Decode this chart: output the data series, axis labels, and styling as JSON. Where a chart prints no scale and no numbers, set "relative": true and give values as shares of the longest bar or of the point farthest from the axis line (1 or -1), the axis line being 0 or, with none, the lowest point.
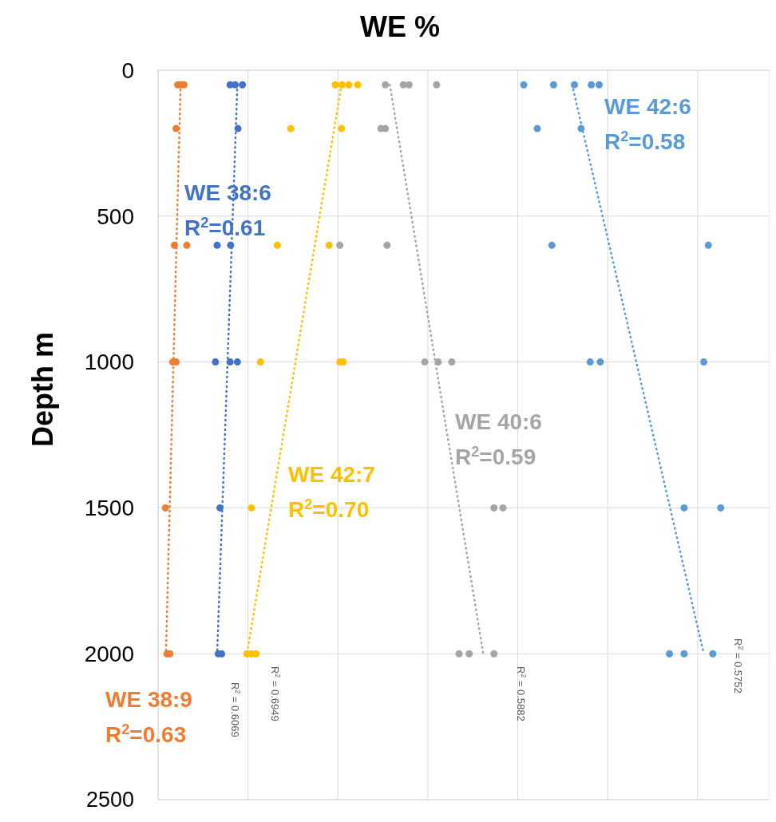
{
  "chart_data": {
    "type": "scatter",
    "title": "WE %",
    "ylabel": "Depth m",
    "orientation": "horizontal",
    "relative": true,
    "ylim": [
      2500,
      0
    ],
    "yticks": [
      0,
      500,
      1000,
      1500,
      2000,
      2500
    ],
    "tick_labels": "y",
    "grid": true,
    "marker": "circle",
    "series": [
      {
        "name": "WE 38:9",
        "color": "#ed7d31",
        "x": [
          50,
          50,
          50,
          200,
          600,
          600,
          1000,
          1000,
          1500,
          2000,
          2000
        ],
        "values": [
          0.035,
          0.04,
          0.046,
          0.032,
          0.029,
          0.051,
          0.026,
          0.032,
          0.013,
          0.016,
          0.021
        ]
      },
      {
        "name": "WE 38:6",
        "color": "#4472c4",
        "x": [
          50,
          50,
          50,
          200,
          600,
          600,
          1000,
          1000,
          1000,
          1500,
          2000,
          2000
        ],
        "values": [
          0.128,
          0.137,
          0.15,
          0.142,
          0.105,
          0.129,
          0.102,
          0.128,
          0.141,
          0.11,
          0.107,
          0.113
        ]
      },
      {
        "name": "WE 42:7",
        "color": "#ffc000",
        "x": [
          50,
          50,
          50,
          50,
          200,
          200,
          600,
          600,
          1000,
          1000,
          1000,
          1500,
          2000,
          2000,
          2000
        ],
        "values": [
          0.315,
          0.327,
          0.339,
          0.355,
          0.236,
          0.326,
          0.212,
          0.304,
          0.182,
          0.323,
          0.329,
          0.166,
          0.158,
          0.166,
          0.174
        ]
      },
      {
        "name": "WE 40:6",
        "color": "#a5a5a5",
        "x": [
          50,
          50,
          50,
          50,
          200,
          200,
          600,
          600,
          1000,
          1000,
          1000,
          1500,
          1500,
          2000,
          2000,
          2000
        ],
        "values": [
          0.404,
          0.436,
          0.446,
          0.495,
          0.396,
          0.404,
          0.323,
          0.407,
          0.474,
          0.498,
          0.522,
          0.597,
          0.613,
          0.535,
          0.553,
          0.597
        ]
      },
      {
        "name": "WE 42:6",
        "color": "#5b9bd5",
        "x": [
          50,
          50,
          50,
          50,
          50,
          200,
          200,
          600,
          600,
          1000,
          1000,
          1000,
          1500,
          1500,
          2000,
          2000,
          2000
        ],
        "values": [
          0.65,
          0.703,
          0.74,
          0.77,
          0.784,
          0.674,
          0.752,
          0.7,
          0.978,
          0.768,
          0.786,
          0.97,
          0.935,
          1,
          0.909,
          0.935,
          0.986
        ]
      },
      {
        "type": "line",
        "line_style": "dotted",
        "marker": "none",
        "color": "#ed7d31",
        "x": [
          50,
          2000
        ],
        "values": [
          0.04,
          0.014
        ]
      },
      {
        "type": "line",
        "line_style": "dotted",
        "marker": "none",
        "color": "#4472c4",
        "x": [
          50,
          2000
        ],
        "values": [
          0.141,
          0.105
        ]
      },
      {
        "type": "line",
        "line_style": "dotted",
        "marker": "none",
        "color": "#ffc000",
        "x": [
          50,
          2000
        ],
        "values": [
          0.326,
          0.158
        ]
      },
      {
        "type": "line",
        "line_style": "dotted",
        "marker": "none",
        "color": "#a5a5a5",
        "x": [
          50,
          2000
        ],
        "values": [
          0.412,
          0.578
        ]
      },
      {
        "type": "line",
        "line_style": "dotted",
        "marker": "none",
        "color": "#5b9bd5",
        "x": [
          50,
          2000
        ],
        "values": [
          0.736,
          0.97
        ]
      }
    ],
    "annotations": [
      "R$^{2}$=0.63",
      "R$^{2}$=0.61",
      "R$^{2}$=0.70",
      "R$^{2}$=0.59",
      "R$^{2}$=0.58",
      "R$^{2}$ = 0.6069",
      "R$^{2}$ = 0.6949",
      "R$^{2}$ = 0.5882",
      "R$^{2}$ = 0.5752"
    ]
  }
}
